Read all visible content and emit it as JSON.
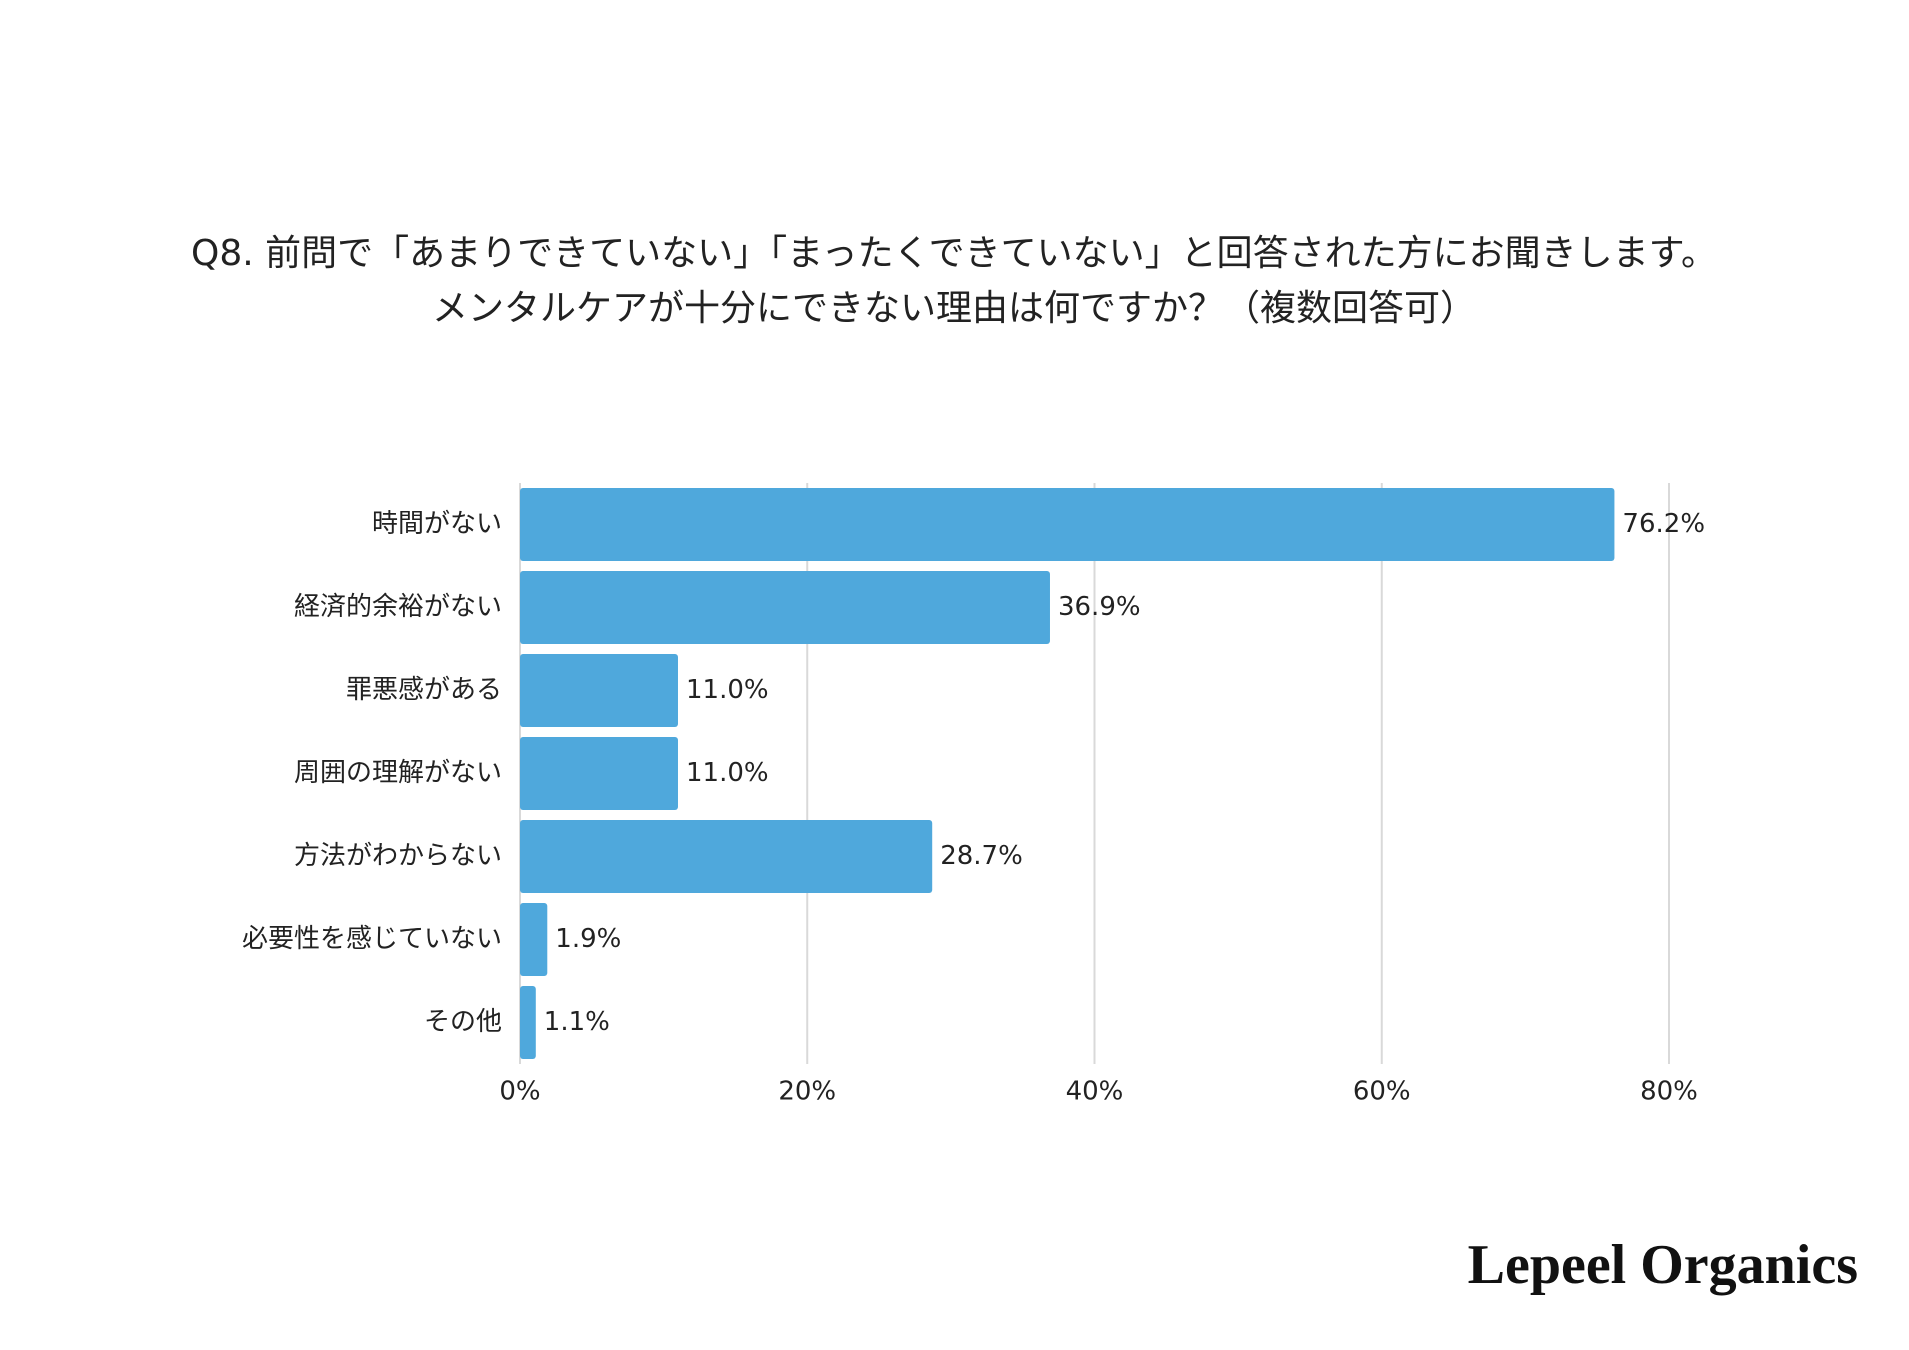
{
  "chart_data": {
    "type": "barh",
    "title": [
      "Q8. 前問で「あまりできていない」「まったくできていない」と回答された方にお聞きします。",
      "メンタルケアが十分にできない理由は何ですか？（複数回答可）"
    ],
    "categories": [
      "時間がない",
      "経済的余裕がない",
      "罪悪感がある",
      "周囲の理解がない",
      "方法がわからない",
      "必要性を感じていない",
      "その他"
    ],
    "values": [
      76.2,
      36.9,
      11.0,
      11.0,
      28.7,
      1.9,
      1.1
    ],
    "value_labels": [
      "76.2%",
      "36.9%",
      "11.0%",
      "11.0%",
      "28.7%",
      "1.9%",
      "1.1%"
    ],
    "color": "#4fa8dc",
    "xlim": [
      0,
      80
    ],
    "xticks": [
      {
        "value": 0,
        "label": "0%"
      },
      {
        "value": 20,
        "label": "20%"
      },
      {
        "value": 40,
        "label": "40%"
      },
      {
        "value": 60,
        "label": "60%"
      },
      {
        "value": 80,
        "label": "80%"
      }
    ],
    "grid": true
  },
  "brand": "Lepeel Organics"
}
